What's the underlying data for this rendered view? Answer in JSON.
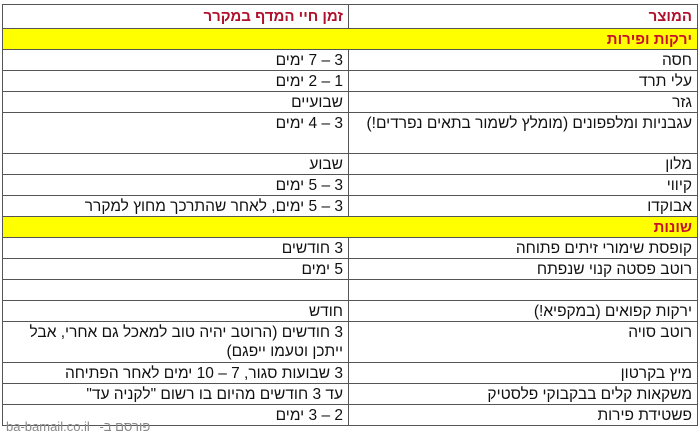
{
  "header": {
    "product": "המוצר",
    "shelf_life": "זמן חיי המדף במקרר"
  },
  "sections": [
    {
      "title": "ירקות ופירות",
      "rows": [
        {
          "product": "חסה",
          "shelf_life": "3 – 7 ימים"
        },
        {
          "product": "עלי תרד",
          "shelf_life": "1 – 2 ימים"
        },
        {
          "product": "גזר",
          "shelf_life": "שבועיים"
        },
        {
          "product": "עגבניות ומלפפונים (מומלץ לשמור בתאים נפרדים!)",
          "shelf_life": "3 – 4 ימים"
        },
        {
          "product": "מלון",
          "shelf_life": "שבוע"
        },
        {
          "product": "קיווי",
          "shelf_life": "3 – 5 ימים"
        },
        {
          "product": "אבוקדו",
          "shelf_life": "3 – 5 ימים, לאחר שהתרכך מחוץ למקרר"
        }
      ]
    },
    {
      "title": "שונות",
      "rows": [
        {
          "product": "קופסת שימורי זיתים פתוחה",
          "shelf_life": "3 חודשים"
        },
        {
          "product": "רוטב פסטה קנוי שנפתח",
          "shelf_life": "5 ימים"
        },
        {
          "product": "",
          "shelf_life": ""
        },
        {
          "product": "ירקות קפואים (במקפיא!)",
          "shelf_life": "חודש"
        },
        {
          "product": "רוטב סויה",
          "shelf_life": "3 חודשים (הרוטב יהיה טוב למאכל גם אחרי, אבל ייתכן וטעמו ייפגם)"
        },
        {
          "product": "מיץ בקרטון",
          "shelf_life": "3 שבועות סגור, 7 – 10 ימים לאחר הפתיחה"
        },
        {
          "product": "משקאות קלים בבקבוקי פלסטיק",
          "shelf_life": "עד 3 חודשים מהיום בו רשום \"לקניה עד\""
        },
        {
          "product": "פשטידת פירות",
          "shelf_life": "2 – 3 ימים"
        }
      ]
    }
  ],
  "watermark": {
    "site": "ba-bamail.co.il",
    "label": "פורסם ב-"
  }
}
